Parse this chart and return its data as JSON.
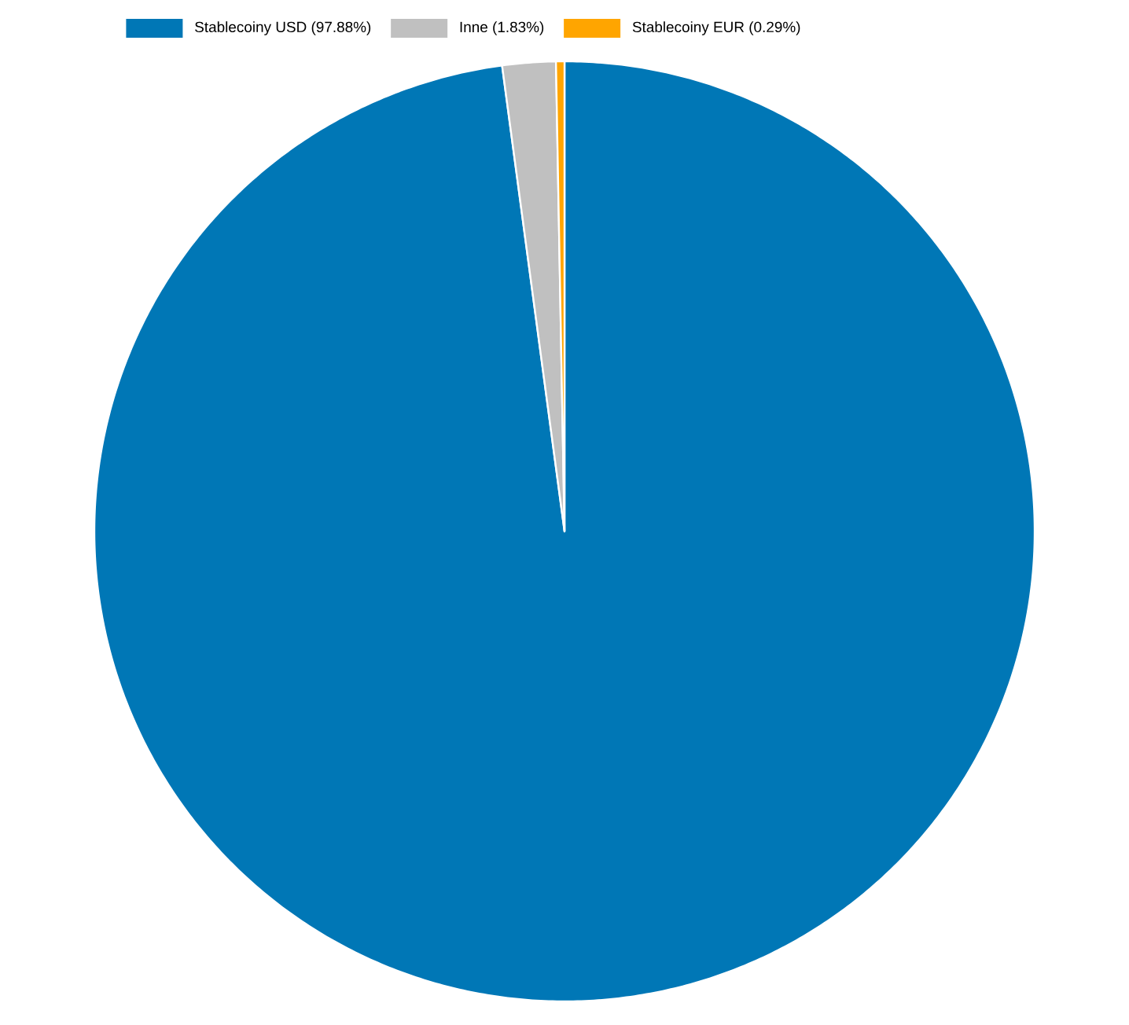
{
  "chart_data": {
    "type": "pie",
    "categories": [
      "Stablecoiny USD (97.88%)",
      "Inne (1.83%)",
      "Stablecoiny EUR (0.29%)"
    ],
    "values": [
      97.88,
      1.83,
      0.29
    ],
    "colors": [
      "#0077b6",
      "#c0c0c0",
      "#ffa500"
    ],
    "legend": "top"
  }
}
